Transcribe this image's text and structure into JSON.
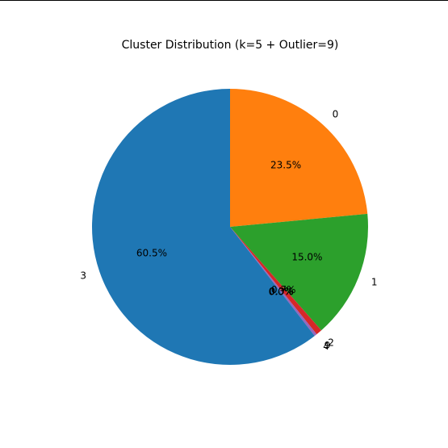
{
  "chart_data": {
    "type": "pie",
    "title": "Cluster Distribution (k=5 + Outlier=9)",
    "start_angle_deg": 90,
    "direction": "clockwise",
    "slices": [
      {
        "label": "0",
        "value": 23.5,
        "pct_label": "23.5%",
        "color": "#ff7f0e"
      },
      {
        "label": "1",
        "value": 15.0,
        "pct_label": "15.0%",
        "color": "#2ca02c"
      },
      {
        "label": "2",
        "value": 0.7,
        "pct_label": "0.7%",
        "color": "#d62728"
      },
      {
        "label": "9",
        "value": 0.3,
        "pct_label": "0.3%",
        "color": "#9467bd"
      },
      {
        "label": "4",
        "value": 0.0,
        "pct_label": "0.0%",
        "color": "#8c564b"
      },
      {
        "label": "3",
        "value": 60.5,
        "pct_label": "60.5%",
        "color": "#1f77b4"
      }
    ]
  }
}
